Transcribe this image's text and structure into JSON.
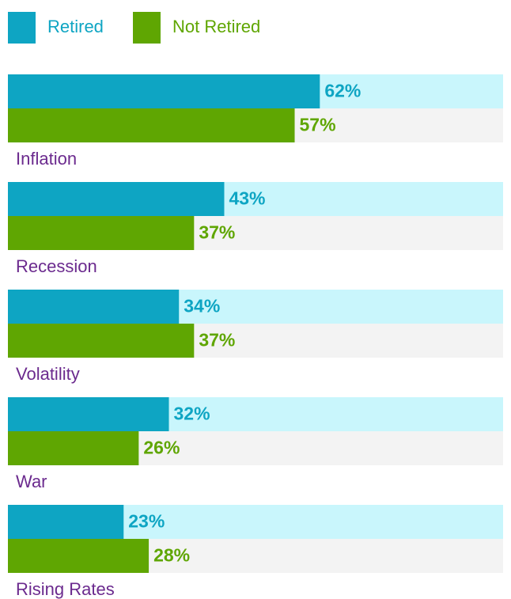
{
  "chart_data": {
    "type": "bar",
    "orientation": "horizontal",
    "categories": [
      "Inflation",
      "Recession",
      "Volatility",
      "War",
      "Rising Rates"
    ],
    "series": [
      {
        "name": "Retired",
        "color": "#0ea5c3",
        "values": [
          62,
          43,
          34,
          32,
          23
        ],
        "value_labels": [
          "62%",
          "43%",
          "34%",
          "32%",
          "23%"
        ]
      },
      {
        "name": "Not Retired",
        "color": "#5fa602",
        "values": [
          57,
          37,
          37,
          26,
          28
        ],
        "value_labels": [
          "57%",
          "37%",
          "37%",
          "26%",
          "28%"
        ]
      }
    ],
    "xlim": [
      0,
      100
    ],
    "legend": "top-left"
  }
}
